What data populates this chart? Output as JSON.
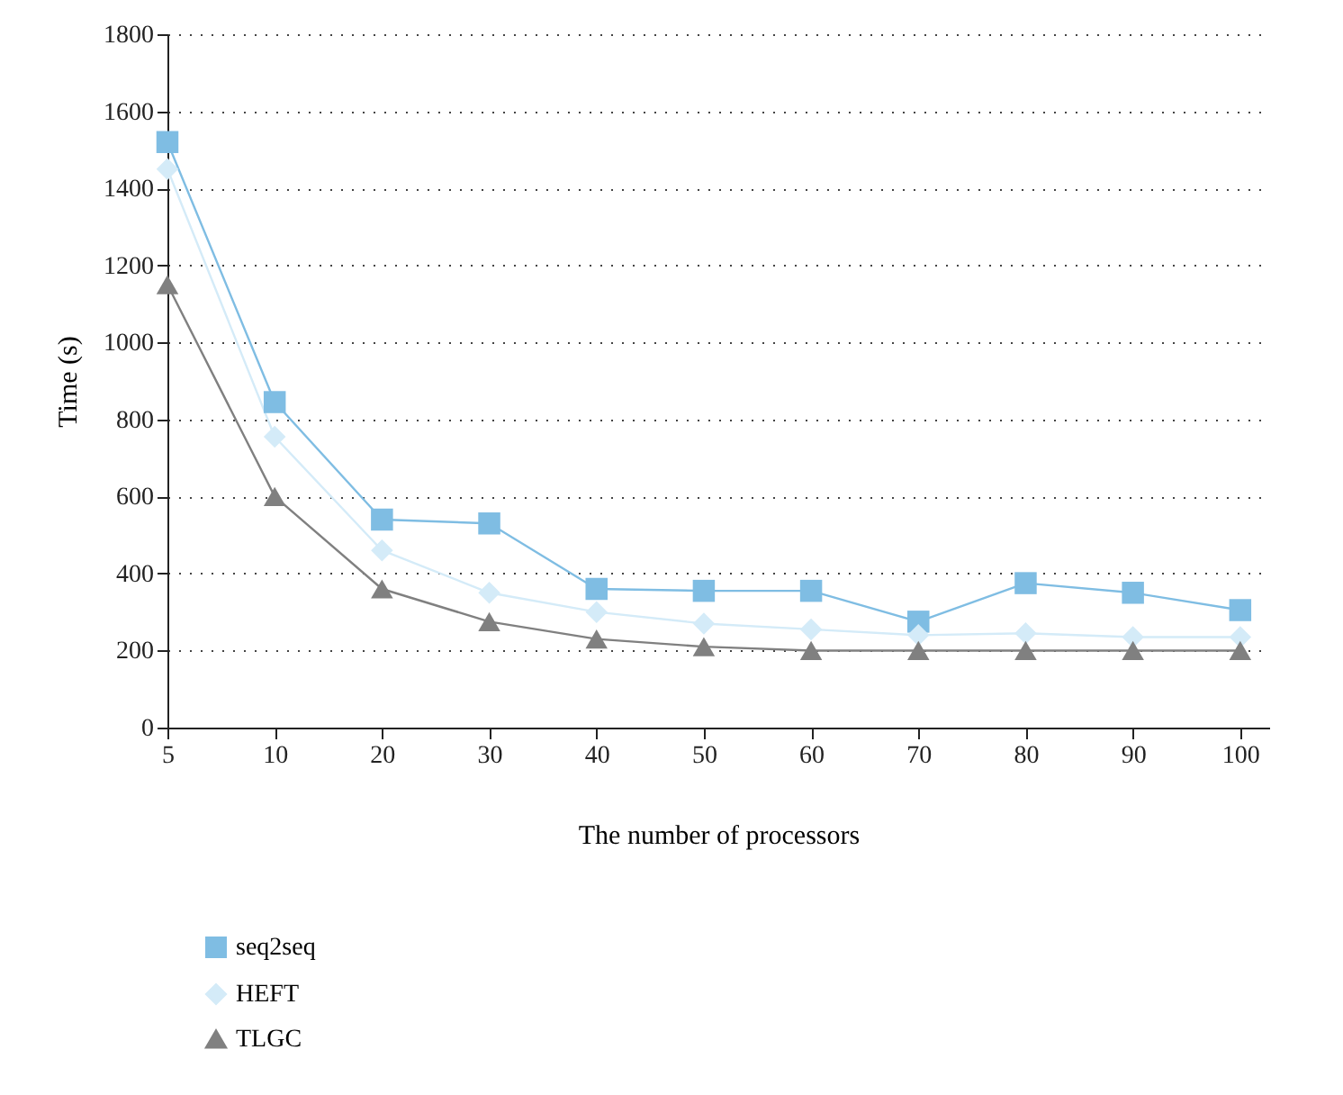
{
  "chart_data": {
    "type": "line",
    "xlabel": "The number of processors",
    "ylabel": "Time (s)",
    "categories": [
      "5",
      "10",
      "20",
      "30",
      "40",
      "50",
      "60",
      "70",
      "80",
      "90",
      "100"
    ],
    "series": [
      {
        "name": "seq2seq",
        "color": "#7fbde3",
        "marker": "square",
        "values": [
          1520,
          845,
          540,
          530,
          360,
          355,
          355,
          275,
          375,
          350,
          305
        ]
      },
      {
        "name": "HEFT",
        "color": "#d4ebf8",
        "marker": "diamond",
        "values": [
          1450,
          755,
          460,
          350,
          300,
          270,
          255,
          240,
          245,
          235,
          235
        ]
      },
      {
        "name": "TLGC",
        "color": "#808080",
        "marker": "triangle",
        "values": [
          1150,
          600,
          360,
          275,
          230,
          210,
          200,
          200,
          200,
          200,
          200
        ]
      }
    ],
    "ylim": [
      0,
      1800
    ],
    "yticks": [
      0,
      200,
      400,
      600,
      800,
      1000,
      1200,
      1400,
      1600,
      1800
    ],
    "grid": "y",
    "legend": "bottom left",
    "line_style": "solid"
  }
}
